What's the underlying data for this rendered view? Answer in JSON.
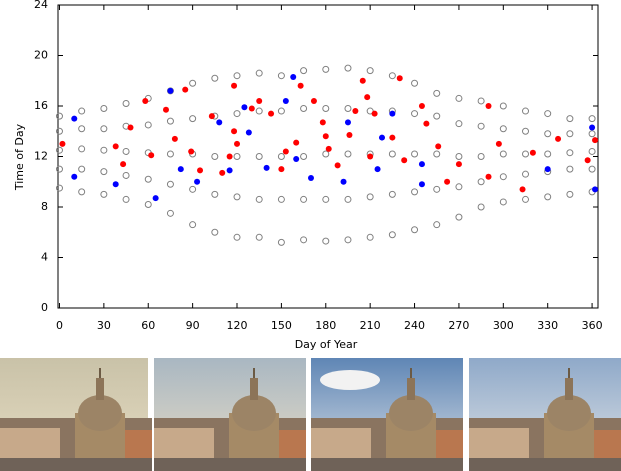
{
  "chart_data": {
    "type": "scatter",
    "xlabel": "Day of Year",
    "ylabel": "Time of Day",
    "xlim": [
      -1,
      364
    ],
    "ylim": [
      0,
      24
    ],
    "xticks": [
      0,
      30,
      60,
      90,
      120,
      150,
      180,
      210,
      240,
      270,
      300,
      330,
      360
    ],
    "yticks": [
      0,
      4,
      8,
      12,
      16,
      20,
      24
    ],
    "series": [
      {
        "color": "#808080",
        "filled": false,
        "x": [
          0,
          0,
          0,
          0,
          0,
          15,
          15,
          15,
          15,
          15,
          30,
          30,
          30,
          30,
          30,
          45,
          45,
          45,
          45,
          45,
          60,
          60,
          60,
          60,
          60,
          75,
          75,
          75,
          75,
          75,
          90,
          90,
          90,
          90,
          90,
          105,
          105,
          105,
          105,
          105,
          120,
          120,
          120,
          120,
          120,
          135,
          135,
          135,
          135,
          135,
          150,
          150,
          150,
          150,
          150,
          165,
          165,
          165,
          165,
          165,
          180,
          180,
          180,
          180,
          180,
          195,
          195,
          195,
          195,
          195,
          210,
          210,
          210,
          210,
          210,
          225,
          225,
          225,
          225,
          225,
          240,
          240,
          240,
          240,
          240,
          255,
          255,
          255,
          255,
          255,
          270,
          270,
          270,
          270,
          270,
          285,
          285,
          285,
          285,
          285,
          300,
          300,
          300,
          300,
          300,
          315,
          315,
          315,
          315,
          315,
          330,
          330,
          330,
          330,
          330,
          345,
          345,
          345,
          345,
          345,
          360,
          360,
          360,
          360,
          360
        ],
        "values": [
          9.5,
          11,
          12.5,
          14,
          15.2,
          9.2,
          11,
          12.6,
          14.2,
          15.6,
          9,
          10.8,
          12.5,
          14.2,
          15.8,
          8.6,
          10.5,
          12.4,
          14.4,
          16.2,
          8.2,
          10.2,
          12.3,
          14.5,
          16.6,
          7.5,
          9.8,
          12.2,
          14.8,
          17.2,
          6.6,
          9.4,
          12.2,
          15,
          17.8,
          6,
          9,
          12,
          15.2,
          18.2,
          5.6,
          8.8,
          12,
          15.4,
          18.4,
          5.6,
          8.6,
          12,
          15.6,
          18.6,
          5.2,
          8.6,
          12,
          15.6,
          18.4,
          5.4,
          8.6,
          12,
          15.8,
          18.8,
          5.3,
          8.6,
          12.2,
          15.8,
          18.9,
          5.4,
          8.6,
          12.2,
          15.8,
          19,
          5.6,
          8.8,
          12.2,
          15.6,
          18.8,
          5.8,
          9,
          12.2,
          15.6,
          18.4,
          6.2,
          9.2,
          12.2,
          15.4,
          17.8,
          6.6,
          9.4,
          12.2,
          15.2,
          17,
          7.2,
          9.6,
          12,
          14.6,
          16.6,
          8,
          10,
          12,
          14.4,
          16.4,
          8.4,
          10.4,
          12.2,
          14.2,
          16,
          8.6,
          10.6,
          12.2,
          14,
          15.6,
          8.8,
          10.8,
          12.2,
          13.8,
          15.4,
          9,
          11,
          12.3,
          13.8,
          15,
          9.2,
          11,
          12.4,
          13.8,
          15
        ]
      },
      {
        "color": "#ff0000",
        "filled": true,
        "x": [
          2,
          38,
          43,
          48,
          58,
          62,
          72,
          78,
          85,
          89,
          95,
          103,
          110,
          115,
          118,
          118,
          120,
          130,
          135,
          143,
          150,
          153,
          160,
          163,
          172,
          178,
          180,
          182,
          188,
          196,
          200,
          205,
          208,
          210,
          213,
          225,
          230,
          233,
          245,
          248,
          256,
          262,
          270,
          290,
          290,
          297,
          313,
          320,
          337,
          357,
          362
        ],
        "values": [
          13.0,
          12.8,
          11.4,
          14.3,
          16.4,
          12.1,
          15.7,
          13.4,
          17.3,
          12.4,
          10.9,
          15.2,
          10.7,
          12.0,
          17.6,
          14.0,
          13.0,
          15.8,
          16.4,
          15.4,
          11.0,
          12.4,
          13.1,
          17.6,
          16.4,
          14.7,
          13.6,
          12.6,
          11.3,
          13.7,
          15.6,
          18.0,
          16.7,
          12.0,
          15.4,
          13.5,
          18.2,
          11.7,
          16.0,
          14.6,
          12.8,
          10.0,
          11.4,
          16.0,
          10.4,
          13.0,
          9.4,
          12.3,
          13.4,
          11.7,
          13.3
        ]
      },
      {
        "color": "#0000ff",
        "filled": true,
        "x": [
          10,
          10,
          38,
          65,
          75,
          82,
          93,
          108,
          115,
          125,
          128,
          140,
          153,
          158,
          160,
          170,
          192,
          195,
          215,
          218,
          225,
          245,
          245,
          330,
          360,
          362
        ],
        "values": [
          15.0,
          10.4,
          9.8,
          8.7,
          17.2,
          11.0,
          10.0,
          14.7,
          10.9,
          15.9,
          13.9,
          11.1,
          16.4,
          18.3,
          11.8,
          10.3,
          10.0,
          14.7,
          11.0,
          13.5,
          15.4,
          9.8,
          11.4,
          11.0,
          14.3,
          9.4
        ]
      }
    ]
  }
}
